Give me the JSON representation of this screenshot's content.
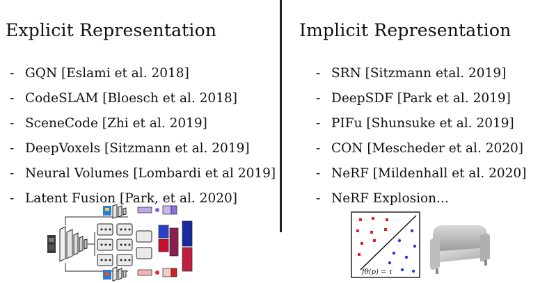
{
  "explicit": {
    "heading": "Explicit Representation",
    "items": [
      "GQN [Eslami et al. 2018]",
      "CodeSLAM [Bloesch et al. 2018]",
      "SceneCode [Zhi et al. 2019]",
      "DeepVoxels [Sitzmann et al. 2019]",
      "Neural Volumes [Lombardi et al 2019]",
      "Latent Fusion [Park, et al. 2020]"
    ]
  },
  "implicit": {
    "heading": "Implicit Representation",
    "items": [
      "SRN [Sitzmann etal. 2019]",
      "DeepSDF [Park et al. 2019]",
      "PIFu [Shunsuke et al. 2019]",
      "CON [Mescheder et al. 2020]",
      "NeRF [Mildenhall et al. 2020]",
      "NeRF Explosion..."
    ],
    "decision_boundary_label": "fθ(p) = τ"
  },
  "colors": {
    "text": "#111111",
    "divider": "#222222",
    "class_a_points": "#e0201a",
    "class_b_points": "#1f3fd6"
  }
}
